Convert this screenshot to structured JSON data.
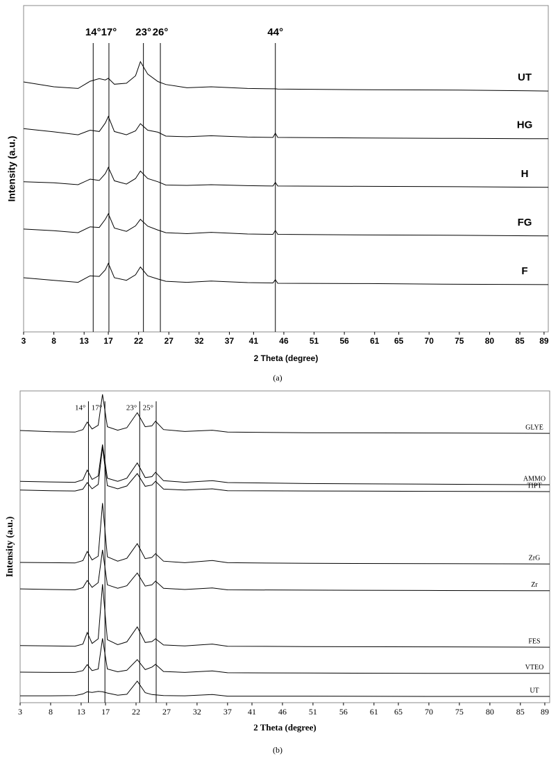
{
  "chart_data": [
    {
      "type": "line",
      "caption": "(a)",
      "x_label": "2 Theta (degree)",
      "y_label": "Intensity (a.u.)",
      "x": [
        3,
        8,
        12,
        14,
        15.5,
        16.5,
        17,
        18,
        20,
        21.5,
        22.3,
        23.5,
        25.2,
        26.5,
        30,
        34,
        40,
        44.2,
        44.6,
        45,
        60,
        75,
        89.7
      ],
      "series": [
        {
          "name": "UT",
          "color": "#000000",
          "values": [
            76.6,
            75.1,
            74.6,
            76.8,
            77.6,
            77.2,
            77.7,
            75.9,
            76.2,
            78.5,
            82.8,
            79,
            76.7,
            75.8,
            74.8,
            75.1,
            74.6,
            74.5,
            74.5,
            74.4,
            74.2,
            74.1,
            73.8
          ]
        },
        {
          "name": "HG",
          "color": "#000000",
          "values": [
            62.3,
            61.3,
            60.4,
            61.8,
            61.4,
            64,
            66,
            61.4,
            60.4,
            61.6,
            63.8,
            61.8,
            61.2,
            60,
            59.8,
            60.1,
            59.7,
            59.6,
            60.9,
            59.6,
            59.4,
            59.3,
            59.2
          ]
        },
        {
          "name": "H",
          "color": "#000000",
          "values": [
            46,
            45.7,
            45.1,
            46.8,
            46.4,
            48.5,
            50.4,
            46.3,
            45.3,
            47,
            49.3,
            47,
            46,
            45,
            44.9,
            45.1,
            44.8,
            44.7,
            45.8,
            44.7,
            44.6,
            44.5,
            44.3
          ]
        },
        {
          "name": "FG",
          "color": "#000000",
          "values": [
            31.5,
            31,
            30.4,
            32.2,
            32,
            34.5,
            36.2,
            31.8,
            30.8,
            32.5,
            34.5,
            32.4,
            31.2,
            30.4,
            30.1,
            30.5,
            30,
            29.9,
            31.1,
            29.9,
            29.7,
            29.6,
            29.4
          ]
        },
        {
          "name": "F",
          "color": "#000000",
          "values": [
            16.6,
            15.8,
            15.2,
            17.2,
            17,
            19,
            21,
            16.6,
            15.8,
            17.5,
            19.9,
            17.2,
            16.2,
            15.5,
            15.2,
            15.6,
            15.1,
            15,
            16,
            14.9,
            14.8,
            14.6,
            14.5
          ]
        }
      ],
      "xlim": [
        3,
        89.7
      ],
      "ylim": [
        0,
        100
      ],
      "xticks": [
        3,
        8,
        13,
        17,
        22,
        27,
        32,
        37,
        41,
        46,
        51,
        56,
        61,
        65,
        70,
        75,
        80,
        85,
        89
      ],
      "reference_lines": [
        {
          "x": 14.5,
          "label": "14°"
        },
        {
          "x": 17.1,
          "label": "17°"
        },
        {
          "x": 22.8,
          "label": "23°"
        },
        {
          "x": 25.6,
          "label": "26°"
        },
        {
          "x": 44.6,
          "label": "44°"
        }
      ]
    },
    {
      "type": "line",
      "caption": "(b)",
      "x_label": "2 Theta (degree)",
      "y_label": "Intensity (a.u.)",
      "x": [
        3,
        8,
        12,
        13.3,
        14,
        14.8,
        15.8,
        16.5,
        17.3,
        19,
        20.5,
        22.2,
        23.5,
        24.6,
        25.2,
        26.5,
        30,
        34.5,
        37,
        50,
        70,
        89.8
      ],
      "series": [
        {
          "name": "GLYE",
          "color": "#000000",
          "values": [
            87.3,
            86.9,
            86.8,
            87.6,
            90,
            87.8,
            89,
            98.9,
            88.5,
            87.4,
            88.2,
            93,
            88.5,
            88.8,
            90.3,
            87.6,
            87,
            87.4,
            86.8,
            86.6,
            86.5,
            86.4
          ]
        },
        {
          "name": "AMMO",
          "color": "#000000",
          "values": [
            71,
            70.8,
            70.7,
            71.5,
            74.6,
            71.6,
            72.7,
            82.8,
            72,
            71,
            72,
            76.9,
            72.2,
            72.5,
            73.9,
            71.2,
            70.7,
            71.2,
            70.6,
            70.3,
            70.1,
            69.9
          ]
        },
        {
          "name": "TIPT",
          "color": "#000000",
          "values": [
            68.2,
            68,
            67.9,
            68.5,
            70.6,
            68.6,
            70,
            82,
            69.6,
            68.6,
            69.5,
            73.5,
            69.4,
            69.8,
            71,
            68.5,
            68.2,
            68.6,
            68,
            67.9,
            67.8,
            67.7
          ]
        },
        {
          "name": "ZrG",
          "color": "#000000",
          "values": [
            45,
            44.9,
            44.8,
            45.6,
            48.5,
            45.8,
            47,
            64,
            46.8,
            45.4,
            46.3,
            51,
            46.2,
            46.6,
            47.8,
            45.4,
            44.9,
            45.6,
            44.9,
            44.7,
            44.6,
            44.5
          ]
        },
        {
          "name": "Zr",
          "color": "#000000",
          "values": [
            36.5,
            36.3,
            36.2,
            36.9,
            39.2,
            37,
            38.5,
            49,
            37.8,
            36.7,
            37.5,
            41.6,
            37.4,
            37.8,
            39,
            36.7,
            36.3,
            36.8,
            36.2,
            36.1,
            36,
            35.9
          ]
        },
        {
          "name": "FES",
          "color": "#000000",
          "values": [
            18.3,
            18.2,
            18.1,
            18.8,
            22.5,
            19,
            20.5,
            38,
            20.2,
            18.6,
            19.5,
            24.3,
            19.3,
            19.6,
            20.5,
            18.5,
            18.2,
            18.8,
            18.1,
            18,
            17.9,
            17.8
          ]
        },
        {
          "name": "VTEO",
          "color": "#000000",
          "values": [
            9.8,
            9.7,
            9.7,
            10.3,
            12.2,
            10.3,
            10.8,
            20.6,
            10.8,
            9.9,
            10.4,
            13.8,
            10.6,
            11.4,
            12.3,
            10,
            9.7,
            10.2,
            9.6,
            9.5,
            9.4,
            9.4
          ]
        },
        {
          "name": "UT",
          "color": "#000000",
          "values": [
            2.2,
            2.2,
            2.3,
            2.8,
            3.5,
            3.3,
            3.6,
            3.5,
            3.1,
            2.4,
            2.7,
            6.9,
            3.2,
            2.6,
            2.5,
            2.3,
            2.2,
            2.6,
            2.1,
            2.1,
            2,
            2
          ]
        }
      ],
      "xlim": [
        3,
        89.8
      ],
      "ylim": [
        0,
        100
      ],
      "xticks": [
        3,
        8,
        13,
        17,
        22,
        27,
        32,
        37,
        41,
        46,
        51,
        56,
        61,
        65,
        70,
        75,
        80,
        85,
        89
      ],
      "reference_lines": [
        {
          "x": 14.2,
          "label": "14°"
        },
        {
          "x": 16.9,
          "label": "17°"
        },
        {
          "x": 22.6,
          "label": "23°"
        },
        {
          "x": 25.3,
          "label": "25°"
        }
      ]
    }
  ]
}
